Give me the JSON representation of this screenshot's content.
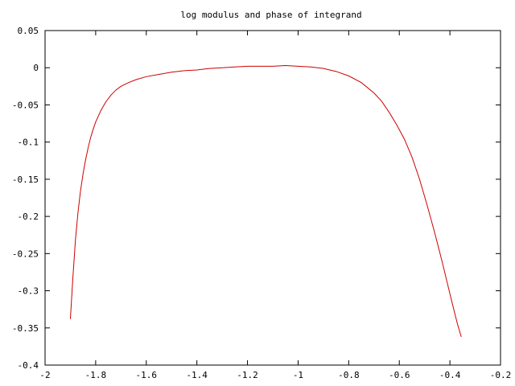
{
  "chart_data": {
    "type": "line",
    "title": "log modulus and phase of integrand",
    "xlabel": "",
    "ylabel": "",
    "xlim": [
      -2,
      -0.2
    ],
    "ylim": [
      -0.4,
      0.05
    ],
    "xticks": [
      -2,
      -1.8,
      -1.6,
      -1.4,
      -1.2,
      -1,
      -0.8,
      -0.6,
      -0.4,
      -0.2
    ],
    "xtick_labels": [
      "-2",
      "-1.8",
      "-1.6",
      "-1.4",
      "-1.2",
      "-1",
      "-0.8",
      "-0.6",
      "-0.4",
      "-0.2"
    ],
    "yticks": [
      0.05,
      0,
      -0.05,
      -0.1,
      -0.15,
      -0.2,
      -0.25,
      -0.3,
      -0.35,
      -0.4
    ],
    "ytick_labels": [
      "0.05",
      "0",
      "-0.05",
      "-0.1",
      "-0.15",
      "-0.2",
      "-0.25",
      "-0.3",
      "-0.35",
      "-0.4"
    ],
    "grid": false,
    "legend": "none",
    "series": [
      {
        "color": "#cc0000",
        "x": [
          -1.9,
          -1.89,
          -1.88,
          -1.87,
          -1.86,
          -1.85,
          -1.84,
          -1.83,
          -1.82,
          -1.81,
          -1.8,
          -1.78,
          -1.76,
          -1.74,
          -1.72,
          -1.7,
          -1.67,
          -1.64,
          -1.6,
          -1.55,
          -1.5,
          -1.45,
          -1.4,
          -1.35,
          -1.3,
          -1.25,
          -1.2,
          -1.15,
          -1.1,
          -1.05,
          -1.0,
          -0.95,
          -0.9,
          -0.85,
          -0.8,
          -0.75,
          -0.7,
          -0.67,
          -0.64,
          -0.61,
          -0.58,
          -0.55,
          -0.52,
          -0.49,
          -0.46,
          -0.43,
          -0.41,
          -0.39,
          -0.37,
          -0.355
        ],
        "y": [
          -0.338,
          -0.282,
          -0.232,
          -0.195,
          -0.166,
          -0.143,
          -0.124,
          -0.108,
          -0.094,
          -0.083,
          -0.073,
          -0.058,
          -0.046,
          -0.037,
          -0.03,
          -0.025,
          -0.02,
          -0.016,
          -0.012,
          -0.009,
          -0.006,
          -0.004,
          -0.003,
          -0.001,
          0.0,
          0.001,
          0.002,
          0.002,
          0.002,
          0.003,
          0.002,
          0.001,
          -0.001,
          -0.005,
          -0.011,
          -0.02,
          -0.034,
          -0.045,
          -0.06,
          -0.077,
          -0.096,
          -0.12,
          -0.15,
          -0.185,
          -0.222,
          -0.262,
          -0.29,
          -0.318,
          -0.345,
          -0.362
        ]
      }
    ]
  }
}
